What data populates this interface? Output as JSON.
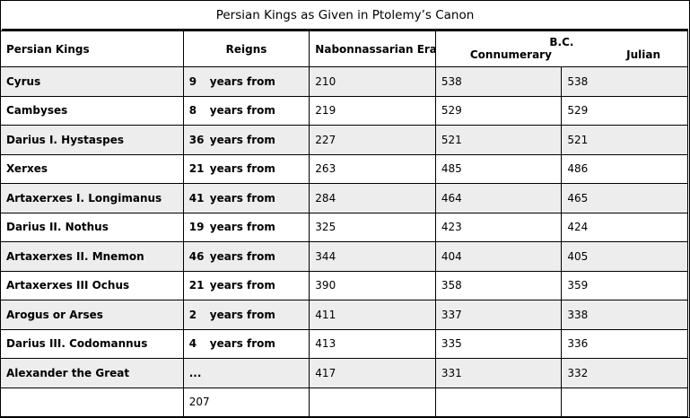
{
  "title": "Persian Kings as Given in Ptolemy’s Canon",
  "headers": {
    "kings": "Persian Kings",
    "reigns": "Reigns",
    "era": "Nabonnassarian Era",
    "bc": "B.C.",
    "connumerary": "Connumerary",
    "julian": "Julian"
  },
  "rows": [
    {
      "king": "Cyrus",
      "reign": "9",
      "from": "years from",
      "era": "210",
      "connumerary": "538",
      "julian": "538"
    },
    {
      "king": "Cambyses",
      "reign": "8",
      "from": "years from",
      "era": "219",
      "connumerary": "529",
      "julian": "529"
    },
    {
      "king": "Darius I. Hystaspes",
      "reign": "36",
      "from": "years from",
      "era": "227",
      "connumerary": "521",
      "julian": "521"
    },
    {
      "king": "Xerxes",
      "reign": "21",
      "from": "years from",
      "era": "263",
      "connumerary": "485",
      "julian": "486"
    },
    {
      "king": "Artaxerxes I. Longimanus",
      "reign": "41",
      "from": "years from",
      "era": "284",
      "connumerary": "464",
      "julian": "465"
    },
    {
      "king": "Darius II. Nothus",
      "reign": "19",
      "from": "years from",
      "era": "325",
      "connumerary": "423",
      "julian": "424"
    },
    {
      "king": "Artaxerxes II. Mnemon",
      "reign": "46",
      "from": "years from",
      "era": "344",
      "connumerary": "404",
      "julian": "405"
    },
    {
      "king": "Artaxerxes III Ochus",
      "reign": "21",
      "from": "years from",
      "era": "390",
      "connumerary": "358",
      "julian": "359"
    },
    {
      "king": "Arogus or Arses",
      "reign": "2",
      "from": "years from",
      "era": "411",
      "connumerary": "337",
      "julian": "338"
    },
    {
      "king": "Darius III. Codomannus",
      "reign": "4",
      "from": "years from",
      "era": "413",
      "connumerary": "335",
      "julian": "336"
    },
    {
      "king": "Alexander the Great",
      "reign": "...",
      "from": "",
      "era": "417",
      "connumerary": "331",
      "julian": "332"
    }
  ],
  "total": "207"
}
